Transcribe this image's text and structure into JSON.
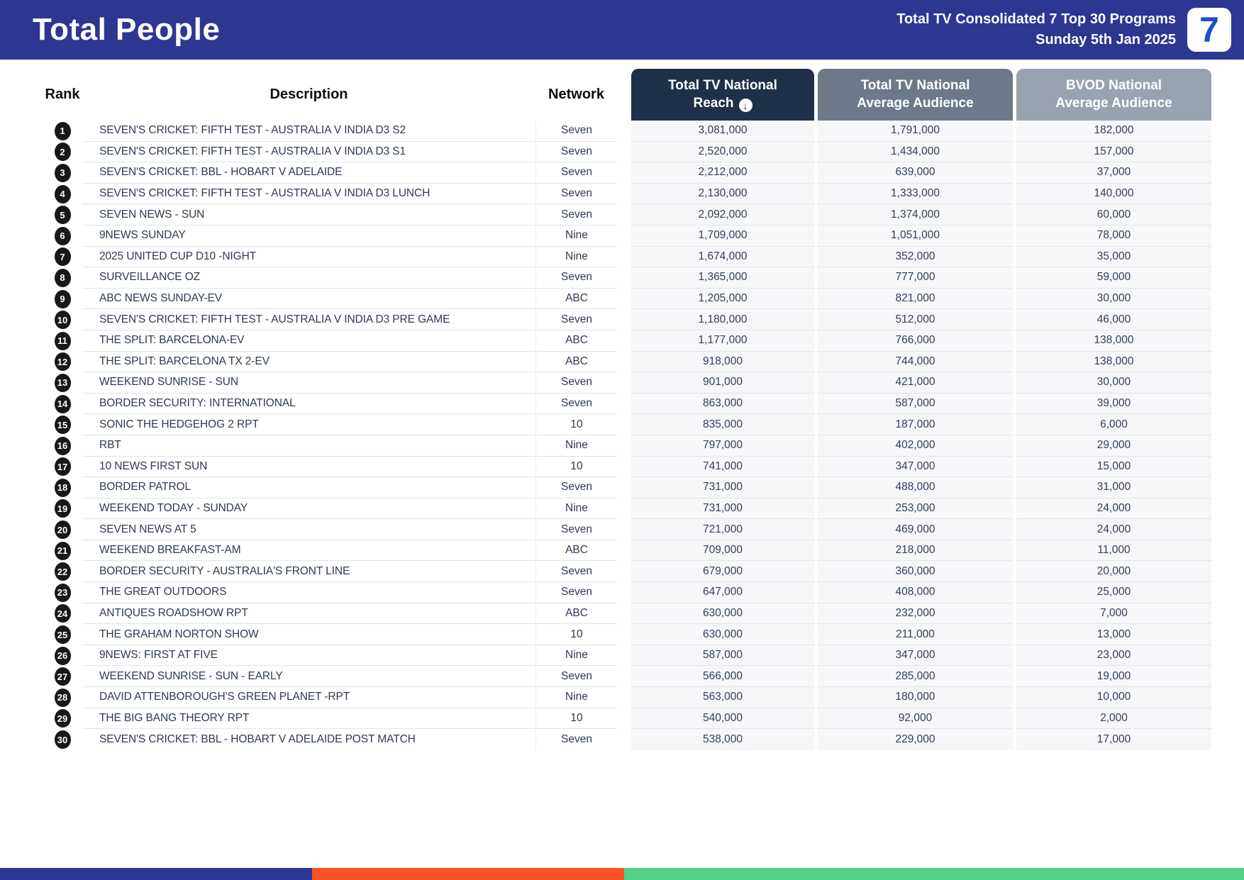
{
  "header": {
    "title": "Total People",
    "report_line1": "Total TV Consolidated 7 Top 30 Programs",
    "report_line2": "Sunday 5th Jan 2025",
    "logo_text": "7"
  },
  "colors": {
    "header_bg": "#2B3791",
    "chip_reach": "#20304B",
    "chip_avg": "#6D7989",
    "chip_bvod": "#99A3AF",
    "footer_blue": "#2B3791",
    "footer_orange": "#FA5226",
    "footer_green": "#53D185"
  },
  "table": {
    "headers": {
      "rank": "Rank",
      "description": "Description",
      "network": "Network",
      "reach_line1": "Total TV National",
      "reach_line2": "Reach",
      "sort_icon": "↓",
      "avg_line1": "Total TV National",
      "avg_line2": "Average Audience",
      "bvod_line1": "BVOD National",
      "bvod_line2": "Average Audience"
    },
    "rows": [
      {
        "rank": "1",
        "description": "SEVEN'S CRICKET: FIFTH TEST - AUSTRALIA V INDIA D3 S2",
        "network": "Seven",
        "reach": "3,081,000",
        "avg_audience": "1,791,000",
        "bvod_audience": "182,000"
      },
      {
        "rank": "2",
        "description": "SEVEN'S CRICKET: FIFTH TEST - AUSTRALIA V INDIA D3 S1",
        "network": "Seven",
        "reach": "2,520,000",
        "avg_audience": "1,434,000",
        "bvod_audience": "157,000"
      },
      {
        "rank": "3",
        "description": "SEVEN'S CRICKET: BBL - HOBART V ADELAIDE",
        "network": "Seven",
        "reach": "2,212,000",
        "avg_audience": "639,000",
        "bvod_audience": "37,000"
      },
      {
        "rank": "4",
        "description": "SEVEN'S CRICKET: FIFTH TEST - AUSTRALIA V INDIA D3 LUNCH",
        "network": "Seven",
        "reach": "2,130,000",
        "avg_audience": "1,333,000",
        "bvod_audience": "140,000"
      },
      {
        "rank": "5",
        "description": "SEVEN NEWS - SUN",
        "network": "Seven",
        "reach": "2,092,000",
        "avg_audience": "1,374,000",
        "bvod_audience": "60,000"
      },
      {
        "rank": "6",
        "description": "9NEWS SUNDAY",
        "network": "Nine",
        "reach": "1,709,000",
        "avg_audience": "1,051,000",
        "bvod_audience": "78,000"
      },
      {
        "rank": "7",
        "description": "2025 UNITED CUP D10 -NIGHT",
        "network": "Nine",
        "reach": "1,674,000",
        "avg_audience": "352,000",
        "bvod_audience": "35,000"
      },
      {
        "rank": "8",
        "description": "SURVEILLANCE OZ",
        "network": "Seven",
        "reach": "1,365,000",
        "avg_audience": "777,000",
        "bvod_audience": "59,000"
      },
      {
        "rank": "9",
        "description": "ABC NEWS SUNDAY-EV",
        "network": "ABC",
        "reach": "1,205,000",
        "avg_audience": "821,000",
        "bvod_audience": "30,000"
      },
      {
        "rank": "10",
        "description": "SEVEN'S CRICKET: FIFTH TEST - AUSTRALIA V INDIA D3 PRE GAME",
        "network": "Seven",
        "reach": "1,180,000",
        "avg_audience": "512,000",
        "bvod_audience": "46,000"
      },
      {
        "rank": "11",
        "description": "THE SPLIT: BARCELONA-EV",
        "network": "ABC",
        "reach": "1,177,000",
        "avg_audience": "766,000",
        "bvod_audience": "138,000"
      },
      {
        "rank": "12",
        "description": "THE SPLIT: BARCELONA TX 2-EV",
        "network": "ABC",
        "reach": "918,000",
        "avg_audience": "744,000",
        "bvod_audience": "138,000"
      },
      {
        "rank": "13",
        "description": "WEEKEND SUNRISE - SUN",
        "network": "Seven",
        "reach": "901,000",
        "avg_audience": "421,000",
        "bvod_audience": "30,000"
      },
      {
        "rank": "14",
        "description": "BORDER SECURITY: INTERNATIONAL",
        "network": "Seven",
        "reach": "863,000",
        "avg_audience": "587,000",
        "bvod_audience": "39,000"
      },
      {
        "rank": "15",
        "description": "SONIC THE HEDGEHOG 2 RPT",
        "network": "10",
        "reach": "835,000",
        "avg_audience": "187,000",
        "bvod_audience": "6,000"
      },
      {
        "rank": "16",
        "description": "RBT",
        "network": "Nine",
        "reach": "797,000",
        "avg_audience": "402,000",
        "bvod_audience": "29,000"
      },
      {
        "rank": "17",
        "description": "10 NEWS FIRST SUN",
        "network": "10",
        "reach": "741,000",
        "avg_audience": "347,000",
        "bvod_audience": "15,000"
      },
      {
        "rank": "18",
        "description": "BORDER PATROL",
        "network": "Seven",
        "reach": "731,000",
        "avg_audience": "488,000",
        "bvod_audience": "31,000"
      },
      {
        "rank": "19",
        "description": "WEEKEND TODAY - SUNDAY",
        "network": "Nine",
        "reach": "731,000",
        "avg_audience": "253,000",
        "bvod_audience": "24,000"
      },
      {
        "rank": "20",
        "description": "SEVEN NEWS AT 5",
        "network": "Seven",
        "reach": "721,000",
        "avg_audience": "469,000",
        "bvod_audience": "24,000"
      },
      {
        "rank": "21",
        "description": "WEEKEND BREAKFAST-AM",
        "network": "ABC",
        "reach": "709,000",
        "avg_audience": "218,000",
        "bvod_audience": "11,000"
      },
      {
        "rank": "22",
        "description": "BORDER SECURITY - AUSTRALIA'S FRONT LINE",
        "network": "Seven",
        "reach": "679,000",
        "avg_audience": "360,000",
        "bvod_audience": "20,000"
      },
      {
        "rank": "23",
        "description": "THE GREAT OUTDOORS",
        "network": "Seven",
        "reach": "647,000",
        "avg_audience": "408,000",
        "bvod_audience": "25,000"
      },
      {
        "rank": "24",
        "description": "ANTIQUES ROADSHOW RPT",
        "network": "ABC",
        "reach": "630,000",
        "avg_audience": "232,000",
        "bvod_audience": "7,000"
      },
      {
        "rank": "25",
        "description": "THE GRAHAM NORTON SHOW",
        "network": "10",
        "reach": "630,000",
        "avg_audience": "211,000",
        "bvod_audience": "13,000"
      },
      {
        "rank": "26",
        "description": "9NEWS: FIRST AT FIVE",
        "network": "Nine",
        "reach": "587,000",
        "avg_audience": "347,000",
        "bvod_audience": "23,000"
      },
      {
        "rank": "27",
        "description": "WEEKEND SUNRISE - SUN - EARLY",
        "network": "Seven",
        "reach": "566,000",
        "avg_audience": "285,000",
        "bvod_audience": "19,000"
      },
      {
        "rank": "28",
        "description": "DAVID ATTENBOROUGH'S GREEN PLANET -RPT",
        "network": "Nine",
        "reach": "563,000",
        "avg_audience": "180,000",
        "bvod_audience": "10,000"
      },
      {
        "rank": "29",
        "description": "THE BIG BANG THEORY RPT",
        "network": "10",
        "reach": "540,000",
        "avg_audience": "92,000",
        "bvod_audience": "2,000"
      },
      {
        "rank": "30",
        "description": "SEVEN'S CRICKET: BBL - HOBART V ADELAIDE POST MATCH",
        "network": "Seven",
        "reach": "538,000",
        "avg_audience": "229,000",
        "bvod_audience": "17,000"
      }
    ]
  }
}
